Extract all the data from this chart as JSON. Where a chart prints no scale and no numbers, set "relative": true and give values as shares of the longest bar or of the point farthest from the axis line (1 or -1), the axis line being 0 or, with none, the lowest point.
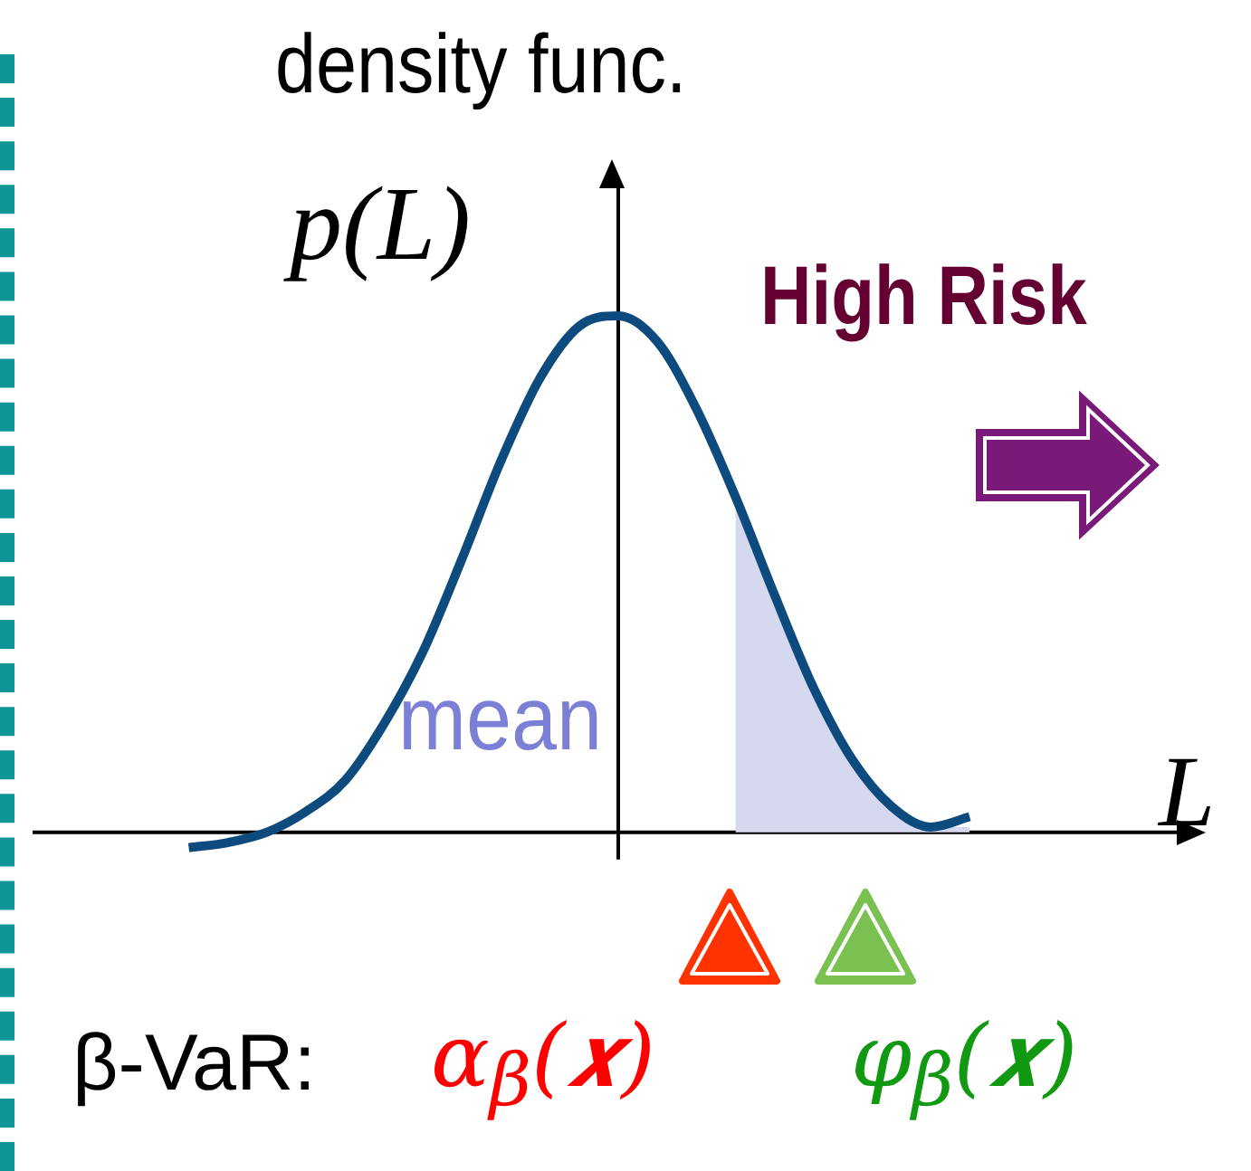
{
  "chart_data": {
    "type": "line",
    "relative": true,
    "title": "density func.",
    "ylabel": "p(L)",
    "xlabel": "L",
    "categories": [
      null,
      null,
      null,
      null,
      null,
      null,
      null,
      null,
      null,
      null,
      null,
      null,
      null,
      null,
      null,
      null,
      null,
      null,
      null,
      null,
      null,
      null,
      null,
      null,
      null,
      null,
      null,
      null,
      null,
      null,
      null
    ],
    "series": [
      {
        "type": "area",
        "color": "#d6d8ef",
        "values": [
          null,
          null,
          null,
          null,
          null,
          null,
          null,
          null,
          null,
          null,
          null,
          null,
          null,
          null,
          null,
          null,
          null,
          null,
          0.65,
          0.46,
          0.28,
          0.14,
          0.05,
          0.01,
          0.01,
          null,
          null,
          null,
          null,
          null,
          null
        ]
      },
      {
        "color": "#0d4a7e",
        "values": [
          null,
          null,
          null,
          null,
          -0.03,
          -0.02,
          0,
          0.04,
          0.1,
          0.21,
          0.35,
          0.53,
          0.72,
          0.88,
          0.98,
          1,
          0.95,
          0.82,
          0.65,
          0.46,
          0.28,
          0.14,
          0.05,
          0.01,
          0.03,
          null,
          null,
          null,
          null,
          null,
          null
        ]
      }
    ],
    "annotations": [
      "High Risk",
      "mean",
      "β-VaR:",
      "α$_{β}$(𝒙)",
      "φ$_{β}$(𝒙)"
    ],
    "legend": false
  }
}
